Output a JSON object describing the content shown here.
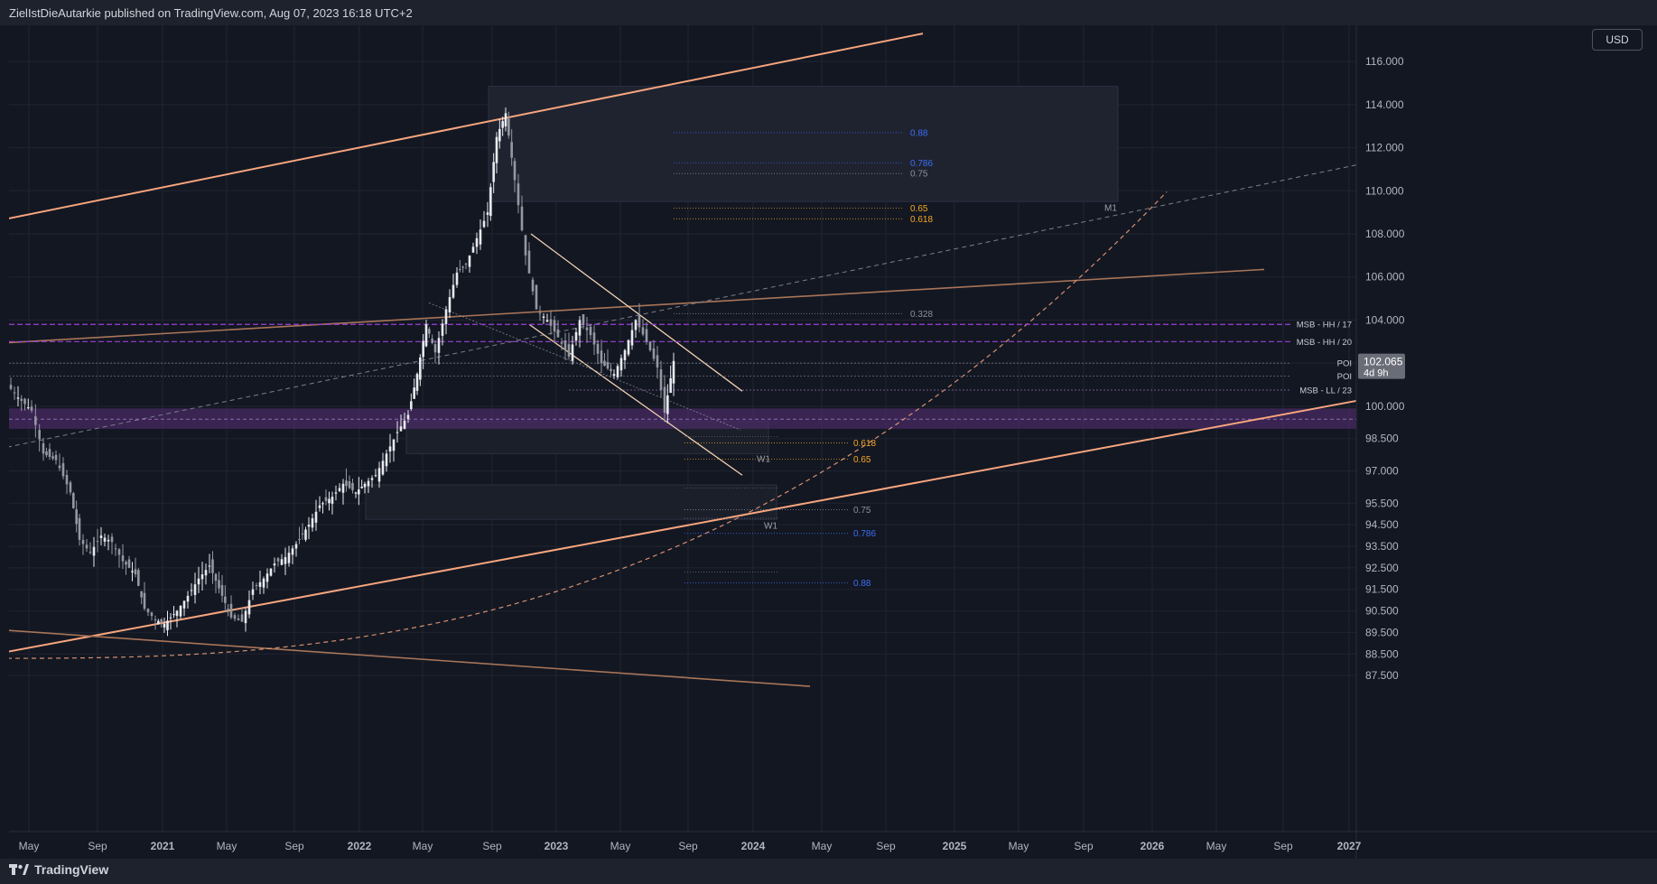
{
  "header": {
    "publisher": "ZielIstDieAutarkie published on TradingView.com, Aug 07, 2023 16:18 UTC+2"
  },
  "footer": {
    "brand": "TradingView"
  },
  "currency_button": "USD",
  "colors": {
    "background": "#131722",
    "panel": "#1e222d",
    "channel": "#f7a57e",
    "brown_line": "#a87558",
    "magenta": "#9c3fd6",
    "candle": "#d1d4dc",
    "blue_fib": "#3d6ef5",
    "orange_fib": "#f5a623"
  },
  "chart_data": {
    "type": "candlestick",
    "y_range": [
      87.0,
      117.3
    ],
    "y_ticks": [
      "116.000",
      "114.000",
      "112.000",
      "110.000",
      "108.000",
      "106.000",
      "104.000",
      "102.000",
      "100.000",
      "98.500",
      "97.000",
      "95.500",
      "94.500",
      "93.500",
      "92.500",
      "91.500",
      "90.500",
      "89.500",
      "88.500",
      "87.500"
    ],
    "x_ticks": [
      "May",
      "Sep",
      "2021",
      "May",
      "Sep",
      "2022",
      "May",
      "Sep",
      "2023",
      "May",
      "Sep",
      "2024",
      "May",
      "Sep",
      "2025",
      "May",
      "Sep",
      "2026",
      "May",
      "Sep",
      "2027"
    ],
    "last_price": "102.065",
    "countdown": "4d 9h",
    "levels": [
      {
        "label": "MSB - HH / 17",
        "price": 103.8
      },
      {
        "label": "MSB - HH / 20",
        "price": 103.0
      },
      {
        "label": "POI",
        "price": 102.0
      },
      {
        "label": "POI",
        "price": 101.4
      },
      {
        "label": "MSB - LL / 23",
        "price": 100.75
      }
    ],
    "fib_upper": [
      {
        "label": "0.88",
        "price": 112.7
      },
      {
        "label": "0.786",
        "price": 111.3
      },
      {
        "label": "0.75",
        "price": 110.8
      },
      {
        "label": "0.65",
        "price": 109.2
      },
      {
        "label": "0.618",
        "price": 108.7
      },
      {
        "label": "0.328",
        "price": 104.3
      }
    ],
    "fib_lower": [
      {
        "label": "0.618",
        "price": 98.3
      },
      {
        "label": "0.65",
        "price": 97.55
      },
      {
        "label": "0.75",
        "price": 95.2
      },
      {
        "label": "0.786",
        "price": 94.1
      },
      {
        "label": "0.88",
        "price": 91.8
      }
    ],
    "zone_labels": [
      "M1",
      "W1",
      "W1"
    ]
  }
}
